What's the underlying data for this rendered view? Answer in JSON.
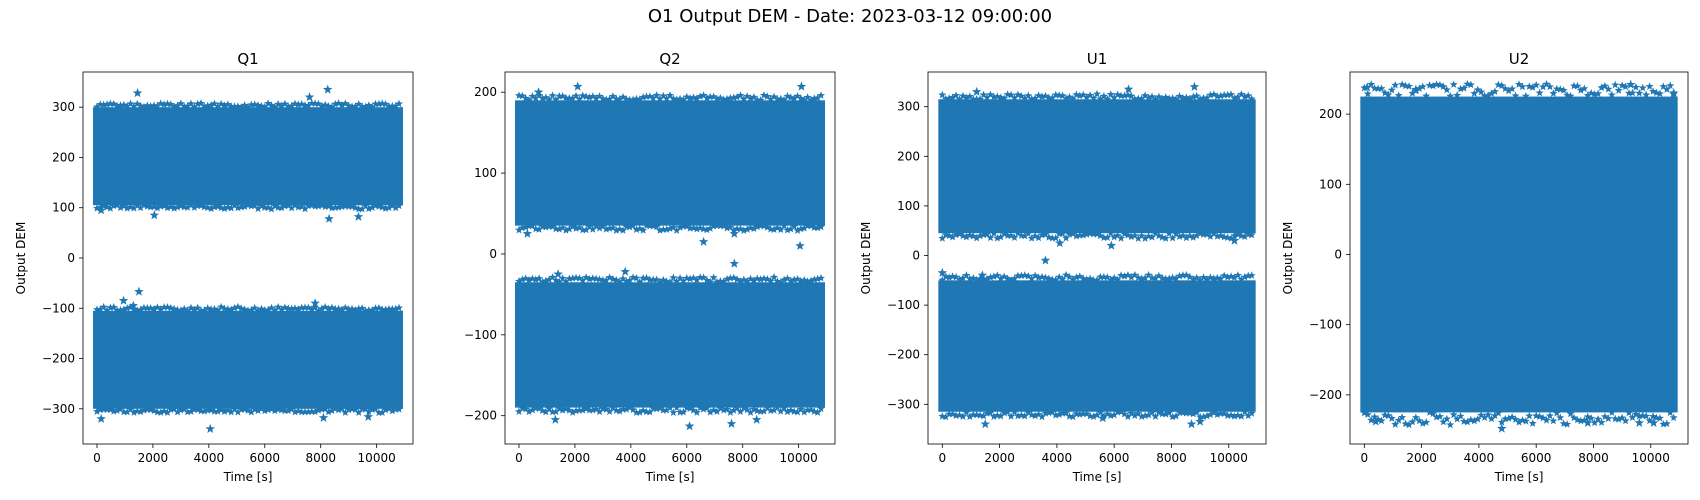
{
  "figure": {
    "suptitle": "O1 Output DEM - Date: 2023-03-12 09:00:00"
  },
  "chart_data": [
    {
      "type": "scatter",
      "title": "Q1",
      "xlabel": "Time [s]",
      "ylabel": "Output DEM",
      "marker": "star",
      "color": "#1f77b4",
      "xlim": [
        -500,
        11300
      ],
      "ylim": [
        -370,
        370
      ],
      "xticks": [
        0,
        2000,
        4000,
        6000,
        8000,
        10000
      ],
      "yticks": [
        -300,
        -200,
        -100,
        0,
        100,
        200,
        300
      ],
      "x_range": [
        0,
        10800
      ],
      "bands": [
        {
          "y_min": 105,
          "y_max": 300
        },
        {
          "y_min": -300,
          "y_max": -105
        }
      ],
      "outliers": [
        {
          "x": 150,
          "y": 95
        },
        {
          "x": 2050,
          "y": 85
        },
        {
          "x": 8300,
          "y": 78
        },
        {
          "x": 9350,
          "y": 82
        },
        {
          "x": 8250,
          "y": 335
        },
        {
          "x": 1450,
          "y": 328
        },
        {
          "x": 7600,
          "y": 320
        },
        {
          "x": 1500,
          "y": -67
        },
        {
          "x": 950,
          "y": -85
        },
        {
          "x": 1300,
          "y": -95
        },
        {
          "x": 7800,
          "y": -90
        },
        {
          "x": 4050,
          "y": -340
        },
        {
          "x": 150,
          "y": -320
        },
        {
          "x": 8100,
          "y": -318
        },
        {
          "x": 9700,
          "y": -316
        }
      ]
    },
    {
      "type": "scatter",
      "title": "Q2",
      "xlabel": "Time [s]",
      "ylabel": "",
      "marker": "star",
      "color": "#1f77b4",
      "xlim": [
        -500,
        11300
      ],
      "ylim": [
        -235,
        225
      ],
      "xticks": [
        0,
        2000,
        4000,
        6000,
        8000,
        10000
      ],
      "yticks": [
        -200,
        -100,
        0,
        100,
        200
      ],
      "x_range": [
        0,
        10800
      ],
      "bands": [
        {
          "y_min": 35,
          "y_max": 190
        },
        {
          "y_min": -190,
          "y_max": -35
        }
      ],
      "outliers": [
        {
          "x": 2100,
          "y": 207
        },
        {
          "x": 10100,
          "y": 207
        },
        {
          "x": 700,
          "y": 200
        },
        {
          "x": 6600,
          "y": 15
        },
        {
          "x": 7700,
          "y": 25
        },
        {
          "x": 10050,
          "y": 10
        },
        {
          "x": 300,
          "y": 25
        },
        {
          "x": 7700,
          "y": -12
        },
        {
          "x": 1400,
          "y": -25
        },
        {
          "x": 3800,
          "y": -22
        },
        {
          "x": 6100,
          "y": -213
        },
        {
          "x": 7600,
          "y": -210
        },
        {
          "x": 1300,
          "y": -205
        },
        {
          "x": 8500,
          "y": -205
        }
      ]
    },
    {
      "type": "scatter",
      "title": "U1",
      "xlabel": "Time [s]",
      "ylabel": "Output DEM",
      "marker": "star",
      "color": "#1f77b4",
      "xlim": [
        -500,
        11300
      ],
      "ylim": [
        -380,
        370
      ],
      "xticks": [
        0,
        2000,
        4000,
        6000,
        8000,
        10000
      ],
      "yticks": [
        -300,
        -200,
        -100,
        0,
        100,
        200,
        300
      ],
      "x_range": [
        0,
        10800
      ],
      "bands": [
        {
          "y_min": 45,
          "y_max": 315
        },
        {
          "y_min": -315,
          "y_max": -50
        }
      ],
      "outliers": [
        {
          "x": 8800,
          "y": 340
        },
        {
          "x": 6500,
          "y": 335
        },
        {
          "x": 1200,
          "y": 330
        },
        {
          "x": 3600,
          "y": -10
        },
        {
          "x": 4100,
          "y": 25
        },
        {
          "x": 5900,
          "y": 20
        },
        {
          "x": 10200,
          "y": 30
        },
        {
          "x": 0,
          "y": -35
        },
        {
          "x": 1400,
          "y": -40
        },
        {
          "x": 1500,
          "y": -340
        },
        {
          "x": 8700,
          "y": -340
        },
        {
          "x": 9000,
          "y": -335
        },
        {
          "x": 5600,
          "y": -328
        }
      ]
    },
    {
      "type": "scatter",
      "title": "U2",
      "xlabel": "Time [s]",
      "ylabel": "Output DEM",
      "marker": "star",
      "color": "#1f77b4",
      "xlim": [
        -500,
        11300
      ],
      "ylim": [
        -270,
        260
      ],
      "xticks": [
        0,
        2000,
        4000,
        6000,
        8000,
        10000
      ],
      "yticks": [
        -200,
        -100,
        0,
        100,
        200
      ],
      "x_range": [
        0,
        10800
      ],
      "bands": [
        {
          "y_min": -225,
          "y_max": 225
        }
      ],
      "outliers": [
        {
          "x": 9300,
          "y": 242
        },
        {
          "x": 1800,
          "y": 235
        },
        {
          "x": 100,
          "y": 238
        },
        {
          "x": 10800,
          "y": 230
        },
        {
          "x": 4800,
          "y": -248
        },
        {
          "x": 10100,
          "y": -240
        },
        {
          "x": 7800,
          "y": -240
        },
        {
          "x": 400,
          "y": -238
        },
        {
          "x": 9600,
          "y": -240
        }
      ]
    }
  ]
}
